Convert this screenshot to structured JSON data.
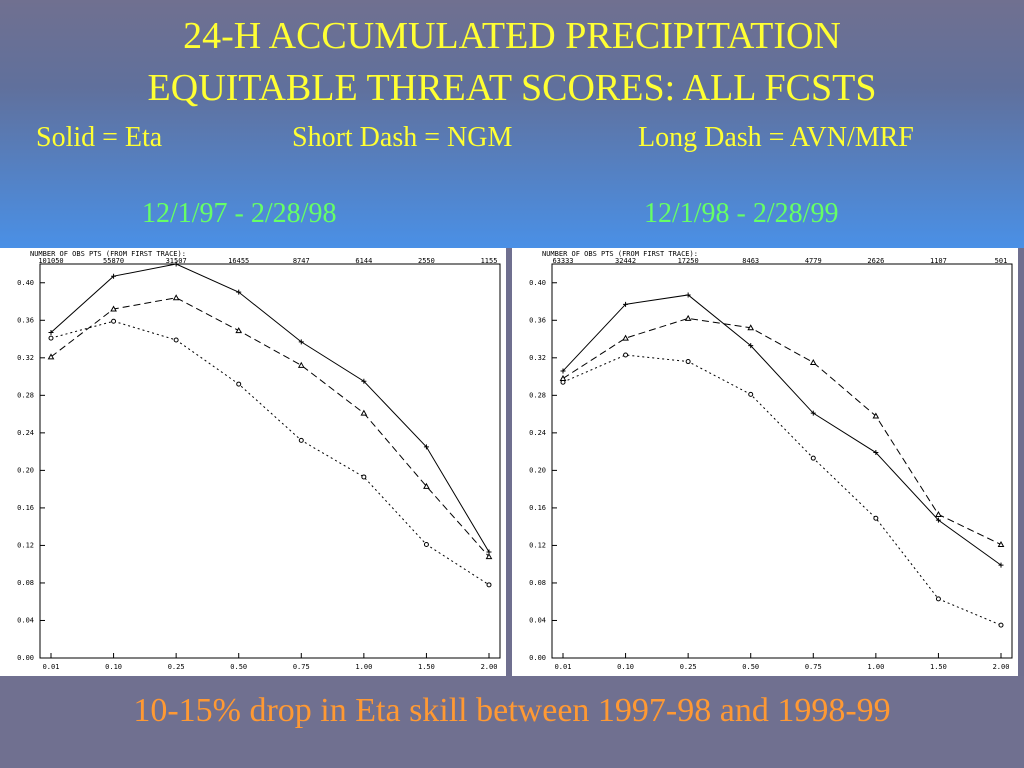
{
  "slide": {
    "title_line1": "24-H ACCUMULATED PRECIPITATION",
    "title_line2": "EQUITABLE THREAT SCORES: ALL FCSTS",
    "legend_solid": "Solid = Eta",
    "legend_short": "Short Dash = NGM",
    "legend_long": "Long Dash = AVN/MRF",
    "date_left": "12/1/97 - 2/28/98",
    "date_right": "12/1/98 - 2/28/99",
    "caption": "10-15% drop in Eta skill between 1997-98 and 1998-99"
  },
  "colors": {
    "title": "#ffff33",
    "dates": "#66ff66",
    "caption": "#ff9933"
  },
  "chart_data": [
    {
      "type": "line",
      "top_label": "NUMBER OF OBS PTS (FROM FIRST TRACE):",
      "counts": [
        "101050",
        "55870",
        "31507",
        "16455",
        "8747",
        "6144",
        "2550",
        "1155"
      ],
      "categories": [
        "0.01",
        "0.10",
        "0.25",
        "0.50",
        "0.75",
        "1.00",
        "1.50",
        "2.00"
      ],
      "y_ticks": [
        "0.00",
        "0.04",
        "0.08",
        "0.12",
        "0.16",
        "0.20",
        "0.24",
        "0.28",
        "0.32",
        "0.36",
        "0.40"
      ],
      "ylim": [
        0,
        0.42
      ],
      "series": [
        {
          "style": "solid",
          "marker": "+",
          "values": [
            0.347,
            0.407,
            0.42,
            0.39,
            0.337,
            0.295,
            0.225,
            0.113
          ]
        },
        {
          "style": "shortdash",
          "marker": "o",
          "values": [
            0.341,
            0.359,
            0.339,
            0.292,
            0.232,
            0.193,
            0.121,
            0.078
          ]
        },
        {
          "style": "longdash",
          "marker": "^",
          "values": [
            0.321,
            0.372,
            0.384,
            0.349,
            0.312,
            0.261,
            0.183,
            0.108
          ]
        }
      ]
    },
    {
      "type": "line",
      "top_label": "NUMBER OF OBS PTS (FROM FIRST TRACE):",
      "counts": [
        "63333",
        "32442",
        "17250",
        "8463",
        "4779",
        "2626",
        "1107",
        "501"
      ],
      "categories": [
        "0.01",
        "0.10",
        "0.25",
        "0.50",
        "0.75",
        "1.00",
        "1.50",
        "2.00"
      ],
      "y_ticks": [
        "0.00",
        "0.04",
        "0.08",
        "0.12",
        "0.16",
        "0.20",
        "0.24",
        "0.28",
        "0.32",
        "0.36",
        "0.40"
      ],
      "ylim": [
        0,
        0.42
      ],
      "series": [
        {
          "style": "solid",
          "marker": "+",
          "values": [
            0.306,
            0.377,
            0.387,
            0.333,
            0.261,
            0.219,
            0.147,
            0.099
          ]
        },
        {
          "style": "shortdash",
          "marker": "o",
          "values": [
            0.294,
            0.323,
            0.316,
            0.281,
            0.213,
            0.149,
            0.063,
            0.035
          ]
        },
        {
          "style": "longdash",
          "marker": "^",
          "values": [
            0.298,
            0.341,
            0.362,
            0.352,
            0.315,
            0.258,
            0.153,
            0.121
          ]
        }
      ]
    }
  ]
}
